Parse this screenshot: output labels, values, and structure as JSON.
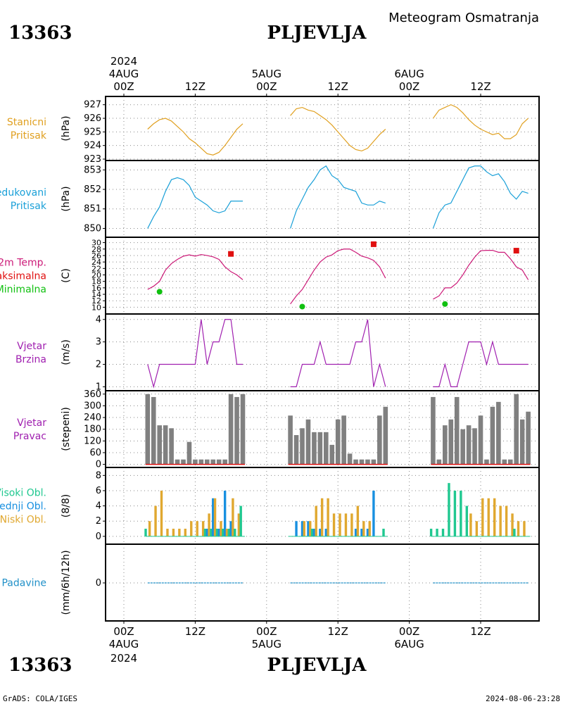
{
  "header": {
    "station_id": "13363",
    "station_name": "PLJEVLJA",
    "subtitle": "Meteogram Osmatranja"
  },
  "footer": {
    "credit": "GrADS: COLA/IGES",
    "timestamp": "2024-08-06-23:28"
  },
  "time_axis": {
    "year": "2024",
    "days": [
      "4AUG",
      "5AUG",
      "6AUG"
    ],
    "hour_labels": [
      "00Z",
      "12Z",
      "00Z",
      "12Z",
      "00Z",
      "12Z"
    ],
    "hour_positions": [
      0,
      12,
      24,
      36,
      48,
      60
    ]
  },
  "colors": {
    "pressure": "#e0a020",
    "reduced": "#1aa0d8",
    "temp": "#cc1a78",
    "tmax": "#e01010",
    "tmin": "#10c010",
    "wind": "#a020b0",
    "dir_bars": "#808080",
    "high_cloud": "#20c890",
    "mid_cloud": "#1890e0",
    "low_cloud": "#e0a830",
    "precip": "#2090c8"
  },
  "chart_data": [
    {
      "type": "line",
      "panel": "station-pressure",
      "label_lines": [
        "Stanicni",
        "Pritisak"
      ],
      "ylabel": "(hPa)",
      "yticks": [
        923,
        924,
        925,
        926,
        927
      ],
      "ylim": [
        923,
        927.4
      ],
      "series": [
        {
          "x": [
            4,
            5,
            6,
            7,
            8,
            9,
            10,
            11,
            12,
            13,
            14,
            15,
            16,
            17,
            18,
            19,
            20,
            28,
            29,
            30,
            31,
            32,
            33,
            34,
            35,
            36,
            37,
            38,
            39,
            40,
            41,
            42,
            43,
            44,
            52,
            53,
            54,
            55,
            56,
            57,
            58,
            59,
            60,
            61,
            62,
            63,
            64,
            65,
            66,
            67,
            68
          ],
          "y": [
            925.2,
            925.6,
            925.9,
            926.0,
            925.8,
            925.4,
            925.0,
            924.5,
            924.2,
            923.8,
            923.4,
            923.3,
            923.5,
            924.0,
            924.6,
            925.2,
            925.6,
            926.2,
            926.7,
            926.8,
            926.6,
            926.5,
            926.2,
            925.9,
            925.5,
            925.0,
            924.5,
            924.0,
            923.7,
            923.6,
            923.8,
            924.3,
            924.8,
            925.2,
            926.0,
            926.6,
            926.8,
            927.0,
            926.8,
            926.4,
            925.9,
            925.5,
            925.2,
            925.0,
            924.8,
            924.9,
            924.5,
            924.5,
            924.8,
            925.6,
            926.0
          ]
        }
      ]
    },
    {
      "type": "line",
      "panel": "reduced-pressure",
      "label_lines": [
        "Redukovani",
        "Pritisak"
      ],
      "ylabel": "(hPa)",
      "yticks": [
        850,
        851,
        852,
        853
      ],
      "ylim": [
        849.8,
        853.3
      ],
      "series": [
        {
          "x": [
            4,
            5,
            6,
            7,
            8,
            9,
            10,
            11,
            12,
            13,
            14,
            15,
            16,
            17,
            18,
            19,
            20,
            28,
            29,
            30,
            31,
            32,
            33,
            34,
            35,
            36,
            37,
            38,
            39,
            40,
            41,
            42,
            43,
            44,
            52,
            53,
            54,
            55,
            56,
            57,
            58,
            59,
            60,
            61,
            62,
            63,
            64,
            65,
            66,
            67,
            68
          ],
          "y": [
            850.0,
            850.6,
            851.1,
            851.9,
            852.5,
            852.6,
            852.5,
            852.2,
            851.6,
            851.4,
            851.2,
            850.9,
            850.8,
            850.9,
            851.4,
            851.4,
            851.4,
            850.0,
            850.9,
            851.5,
            852.1,
            852.5,
            853.0,
            853.2,
            852.7,
            852.5,
            852.1,
            852.0,
            851.9,
            851.3,
            851.2,
            851.2,
            851.4,
            851.3,
            850.0,
            850.8,
            851.2,
            851.3,
            851.9,
            852.5,
            853.1,
            853.2,
            853.2,
            852.9,
            852.7,
            852.8,
            852.4,
            851.8,
            851.5,
            851.9,
            851.8
          ]
        }
      ]
    },
    {
      "type": "line",
      "panel": "temperature",
      "label_lines": [
        "2m Temp.",
        "Maksimalna",
        "Minimalna"
      ],
      "ylabel": "(C)",
      "yticks": [
        10,
        12,
        14,
        16,
        18,
        20,
        22,
        24,
        26,
        28,
        30
      ],
      "ylim": [
        9,
        31
      ],
      "series": [
        {
          "name": "2m Temp.",
          "x": [
            4,
            5,
            6,
            7,
            8,
            9,
            10,
            11,
            12,
            13,
            14,
            15,
            16,
            17,
            18,
            19,
            20,
            28,
            29,
            30,
            31,
            32,
            33,
            34,
            35,
            36,
            37,
            38,
            39,
            40,
            41,
            42,
            43,
            44,
            52,
            53,
            54,
            55,
            56,
            57,
            58,
            59,
            60,
            61,
            62,
            63,
            64,
            65,
            66,
            67,
            68
          ],
          "y": [
            15.5,
            16.5,
            18.0,
            21.5,
            23.5,
            24.8,
            25.8,
            26.2,
            25.8,
            26.3,
            26.0,
            25.6,
            24.8,
            22.5,
            21.0,
            20.0,
            18.5,
            11.0,
            13.5,
            15.5,
            18.5,
            21.5,
            24.0,
            25.5,
            26.2,
            27.5,
            28.0,
            28.0,
            27.0,
            25.8,
            25.3,
            24.5,
            22.5,
            19.0,
            12.5,
            13.5,
            16.0,
            16.0,
            17.5,
            20.0,
            23.0,
            25.5,
            27.5,
            27.6,
            27.6,
            27.0,
            27.0,
            25.0,
            22.5,
            21.5,
            18.5
          ]
        },
        {
          "name": "Maksimalna",
          "x": [
            18,
            42,
            66
          ],
          "y": [
            26.5,
            29.5,
            27.5
          ]
        },
        {
          "name": "Minimalna",
          "x": [
            6,
            30,
            54
          ],
          "y": [
            14.8,
            10.2,
            11.0
          ]
        }
      ]
    },
    {
      "type": "line",
      "panel": "wind-speed",
      "label_lines": [
        "Vjetar",
        "Brzina"
      ],
      "ylabel": "(m/s)",
      "yticks": [
        1,
        2,
        3,
        4
      ],
      "ylim": [
        0.95,
        4.15
      ],
      "series": [
        {
          "x": [
            4,
            5,
            6,
            7,
            8,
            9,
            10,
            11,
            12,
            13,
            14,
            15,
            16,
            17,
            18,
            19,
            20,
            28,
            29,
            30,
            31,
            32,
            33,
            34,
            35,
            36,
            37,
            38,
            39,
            40,
            41,
            42,
            43,
            44,
            52,
            53,
            54,
            55,
            56,
            57,
            58,
            59,
            60,
            61,
            62,
            63,
            64,
            65,
            66,
            67,
            68
          ],
          "y": [
            2,
            1,
            2,
            2,
            2,
            2,
            2,
            2,
            2,
            4,
            2,
            3,
            3,
            4,
            4,
            2,
            2,
            1,
            1,
            2,
            2,
            2,
            3,
            2,
            2,
            2,
            2,
            2,
            3,
            3,
            4,
            1,
            2,
            1,
            1,
            1,
            2,
            1,
            1,
            2,
            3,
            3,
            3,
            2,
            3,
            2,
            2,
            2,
            2,
            2,
            2
          ]
        }
      ]
    },
    {
      "type": "bar",
      "panel": "wind-direction",
      "label_lines": [
        "Vjetar",
        "Pravac"
      ],
      "ylabel": "(stepeni)",
      "yticks": [
        0,
        60,
        120,
        180,
        240,
        300,
        360
      ],
      "ylim": [
        -5,
        370
      ],
      "x": [
        4,
        5,
        6,
        7,
        8,
        9,
        10,
        11,
        12,
        13,
        14,
        15,
        16,
        17,
        18,
        19,
        20,
        28,
        29,
        30,
        31,
        32,
        33,
        34,
        35,
        36,
        37,
        38,
        39,
        40,
        41,
        42,
        43,
        44,
        52,
        53,
        54,
        55,
        56,
        57,
        58,
        59,
        60,
        61,
        62,
        63,
        64,
        65,
        66,
        67,
        68
      ],
      "values": [
        360,
        345,
        200,
        200,
        185,
        25,
        25,
        115,
        25,
        25,
        25,
        25,
        25,
        25,
        360,
        345,
        360,
        250,
        150,
        185,
        230,
        165,
        165,
        165,
        100,
        230,
        250,
        55,
        25,
        25,
        25,
        25,
        250,
        295,
        345,
        25,
        200,
        230,
        345,
        180,
        200,
        185,
        250,
        25,
        295,
        320,
        25,
        25,
        360,
        230,
        270
      ]
    },
    {
      "type": "bar",
      "panel": "cloud-cover",
      "label_lines": [
        "Visoki Obl.",
        "Srednji Obl.",
        "Niski Obl."
      ],
      "ylabel": "(8/8)",
      "yticks": [
        0,
        2,
        4,
        6,
        8
      ],
      "ylim": [
        -0.2,
        8.4
      ],
      "x": [
        4,
        5,
        6,
        7,
        8,
        9,
        10,
        11,
        12,
        13,
        14,
        15,
        16,
        17,
        18,
        19,
        20,
        28,
        29,
        30,
        31,
        32,
        33,
        34,
        35,
        36,
        37,
        38,
        39,
        40,
        41,
        42,
        43,
        44,
        52,
        53,
        54,
        55,
        56,
        57,
        58,
        59,
        60,
        61,
        62,
        63,
        64,
        65,
        66,
        67,
        68
      ],
      "series": [
        {
          "name": "Visoki Obl.",
          "values": [
            1,
            0,
            0,
            0,
            0,
            0,
            0,
            0,
            0,
            0,
            1,
            1,
            1,
            1,
            1,
            1,
            4,
            0,
            0,
            0,
            0,
            1,
            0,
            0,
            0,
            0,
            0,
            0,
            0,
            0,
            0,
            0,
            0,
            1,
            1,
            1,
            1,
            7,
            6,
            6,
            4,
            0,
            0,
            0,
            0,
            0,
            0,
            0,
            1,
            0,
            0
          ]
        },
        {
          "name": "Srednji Obl.",
          "values": [
            0,
            0,
            0,
            0,
            0,
            0,
            0,
            0,
            0,
            0,
            1,
            5,
            1,
            6,
            2,
            0,
            0,
            0,
            2,
            2,
            2,
            1,
            1,
            1,
            0,
            0,
            0,
            0,
            1,
            1,
            1,
            6,
            0,
            0,
            0,
            0,
            0,
            0,
            0,
            0,
            0,
            0,
            0,
            0,
            0,
            0,
            0,
            0,
            0,
            0,
            0
          ]
        },
        {
          "name": "Niski Obl.",
          "values": [
            2,
            4,
            6,
            1,
            1,
            1,
            1,
            2,
            2,
            2,
            3,
            5,
            2,
            1,
            5,
            3,
            0,
            0,
            0,
            2,
            2,
            4,
            5,
            5,
            3,
            3,
            3,
            3,
            4,
            2,
            2,
            0,
            0,
            0,
            0,
            0,
            0,
            0,
            0,
            0,
            3,
            2,
            5,
            5,
            5,
            4,
            4,
            3,
            2,
            2,
            0
          ]
        }
      ]
    },
    {
      "type": "line",
      "panel": "precipitation",
      "label_lines": [
        "Padavine"
      ],
      "ylabel": "(mm/6h/12h)",
      "yticks": [
        0
      ],
      "ylim": [
        -0.8,
        0.8
      ],
      "series": [
        {
          "x": [
            4,
            5,
            6,
            7,
            8,
            9,
            10,
            11,
            12,
            13,
            14,
            15,
            16,
            17,
            18,
            19,
            20,
            28,
            29,
            30,
            31,
            32,
            33,
            34,
            35,
            36,
            37,
            38,
            39,
            40,
            41,
            42,
            43,
            44,
            52,
            53,
            54,
            55,
            56,
            57,
            58,
            59,
            60,
            61,
            62,
            63,
            64,
            65,
            66,
            67,
            68
          ],
          "y": [
            0,
            0,
            0,
            0,
            0,
            0,
            0,
            0,
            0,
            0,
            0,
            0,
            0,
            0,
            0,
            0,
            0,
            0,
            0,
            0,
            0,
            0,
            0,
            0,
            0,
            0,
            0,
            0,
            0,
            0,
            0,
            0,
            0,
            0,
            0,
            0,
            0,
            0,
            0,
            0,
            0,
            0,
            0,
            0,
            0,
            0,
            0,
            0,
            0,
            0,
            0
          ]
        }
      ]
    }
  ]
}
